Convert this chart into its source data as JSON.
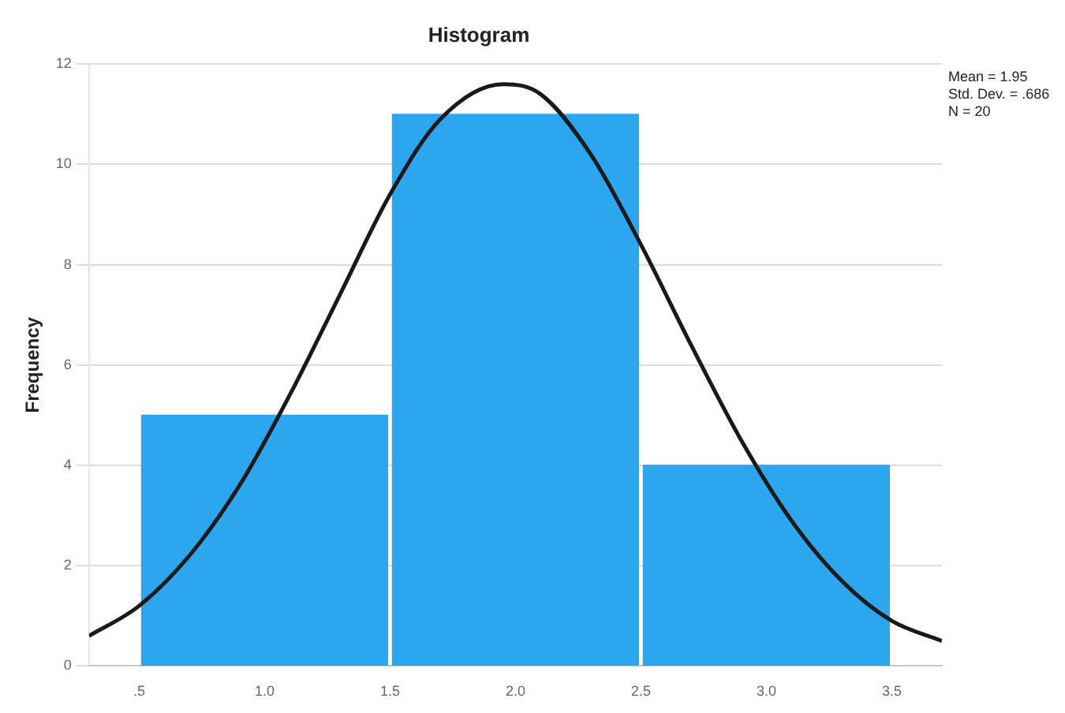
{
  "chart_data": {
    "type": "histogram",
    "title": "Histogram",
    "ylabel": "Frequency",
    "grid": "y",
    "xlim": [
      0.3,
      3.7
    ],
    "ylim": [
      0,
      12
    ],
    "xticks": [
      {
        "value": 0.5,
        "label": ".5"
      },
      {
        "value": 1,
        "label": "1.0"
      },
      {
        "value": 1.5,
        "label": "1.5"
      },
      {
        "value": 2,
        "label": "2.0"
      },
      {
        "value": 2.5,
        "label": "2.5"
      },
      {
        "value": 3,
        "label": "3.0"
      },
      {
        "value": 3.5,
        "label": "3.5"
      }
    ],
    "yticks": [
      0,
      2,
      4,
      6,
      8,
      10,
      12
    ],
    "bins": [
      0.5,
      1.5,
      2.5,
      3.5
    ],
    "values": [
      5,
      11,
      4
    ],
    "color": "#2ba6ef",
    "annotations": [
      "Mean = 1.95",
      "Std. Dev. = .686",
      "N = 20"
    ],
    "series": [
      {
        "type": "line",
        "color": "#1a1a1a",
        "x": [
          0.3,
          0.5,
          0.7,
          0.9,
          1.1,
          1.3,
          1.5,
          1.7,
          1.95,
          2.1,
          2.3,
          2.5,
          2.7,
          2.9,
          3.1,
          3.3,
          3.5,
          3.7
        ],
        "values": [
          0.6,
          1.2,
          2.2,
          3.6,
          5.4,
          7.4,
          9.4,
          10.9,
          11.6,
          11.4,
          10.2,
          8.4,
          6.4,
          4.5,
          2.9,
          1.7,
          0.9,
          0.5
        ]
      }
    ]
  }
}
